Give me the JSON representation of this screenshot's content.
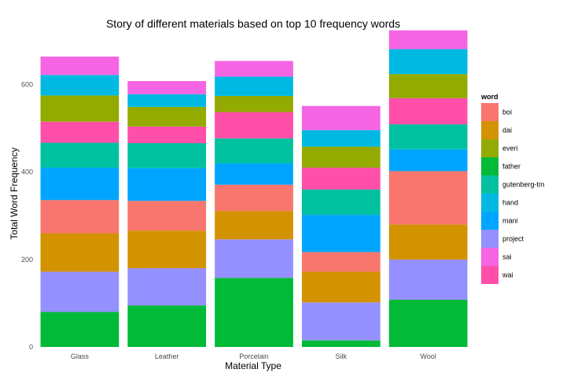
{
  "chart_data": {
    "type": "bar",
    "stacked": true,
    "title": "Story of different materials based on top 10 frequency words",
    "xlabel": "Material Type",
    "ylabel": "Total Word Frequency",
    "categories": [
      "Glass",
      "Leather",
      "Porcelain",
      "Silk",
      "Wool"
    ],
    "y_ticks": [
      0,
      200,
      400,
      600
    ],
    "ylim": [
      0,
      725
    ],
    "grid": false,
    "legend": {
      "title": "word",
      "position": "right"
    },
    "stack_order_bottom_to_top": [
      "father",
      "project",
      "dai",
      "boi",
      "mani",
      "gutenberg-tm",
      "wai",
      "everi",
      "hand",
      "sai"
    ],
    "series": [
      {
        "name": "boi",
        "color": "#F8766D",
        "values": [
          76,
          68,
          60,
          45,
          122
        ]
      },
      {
        "name": "dai",
        "color": "#D39200",
        "values": [
          88,
          86,
          65,
          70,
          80
        ]
      },
      {
        "name": "everi",
        "color": "#93AA00",
        "values": [
          60,
          45,
          37,
          48,
          55
        ]
      },
      {
        "name": "father",
        "color": "#00BA38",
        "values": [
          80,
          95,
          158,
          15,
          108
        ]
      },
      {
        "name": "gutenberg-tm",
        "color": "#00C19F",
        "values": [
          57,
          57,
          57,
          58,
          57
        ]
      },
      {
        "name": "hand",
        "color": "#00B9E3",
        "values": [
          47,
          29,
          44,
          38,
          57
        ]
      },
      {
        "name": "mani",
        "color": "#00A5FF",
        "values": [
          74,
          75,
          49,
          85,
          50
        ]
      },
      {
        "name": "project",
        "color": "#9590FF",
        "values": [
          92,
          85,
          88,
          87,
          92
        ]
      },
      {
        "name": "sai",
        "color": "#F564E3",
        "values": [
          42,
          30,
          36,
          55,
          43
        ]
      },
      {
        "name": "wai",
        "color": "#FF4FA9",
        "values": [
          48,
          38,
          60,
          50,
          60
        ]
      }
    ]
  }
}
